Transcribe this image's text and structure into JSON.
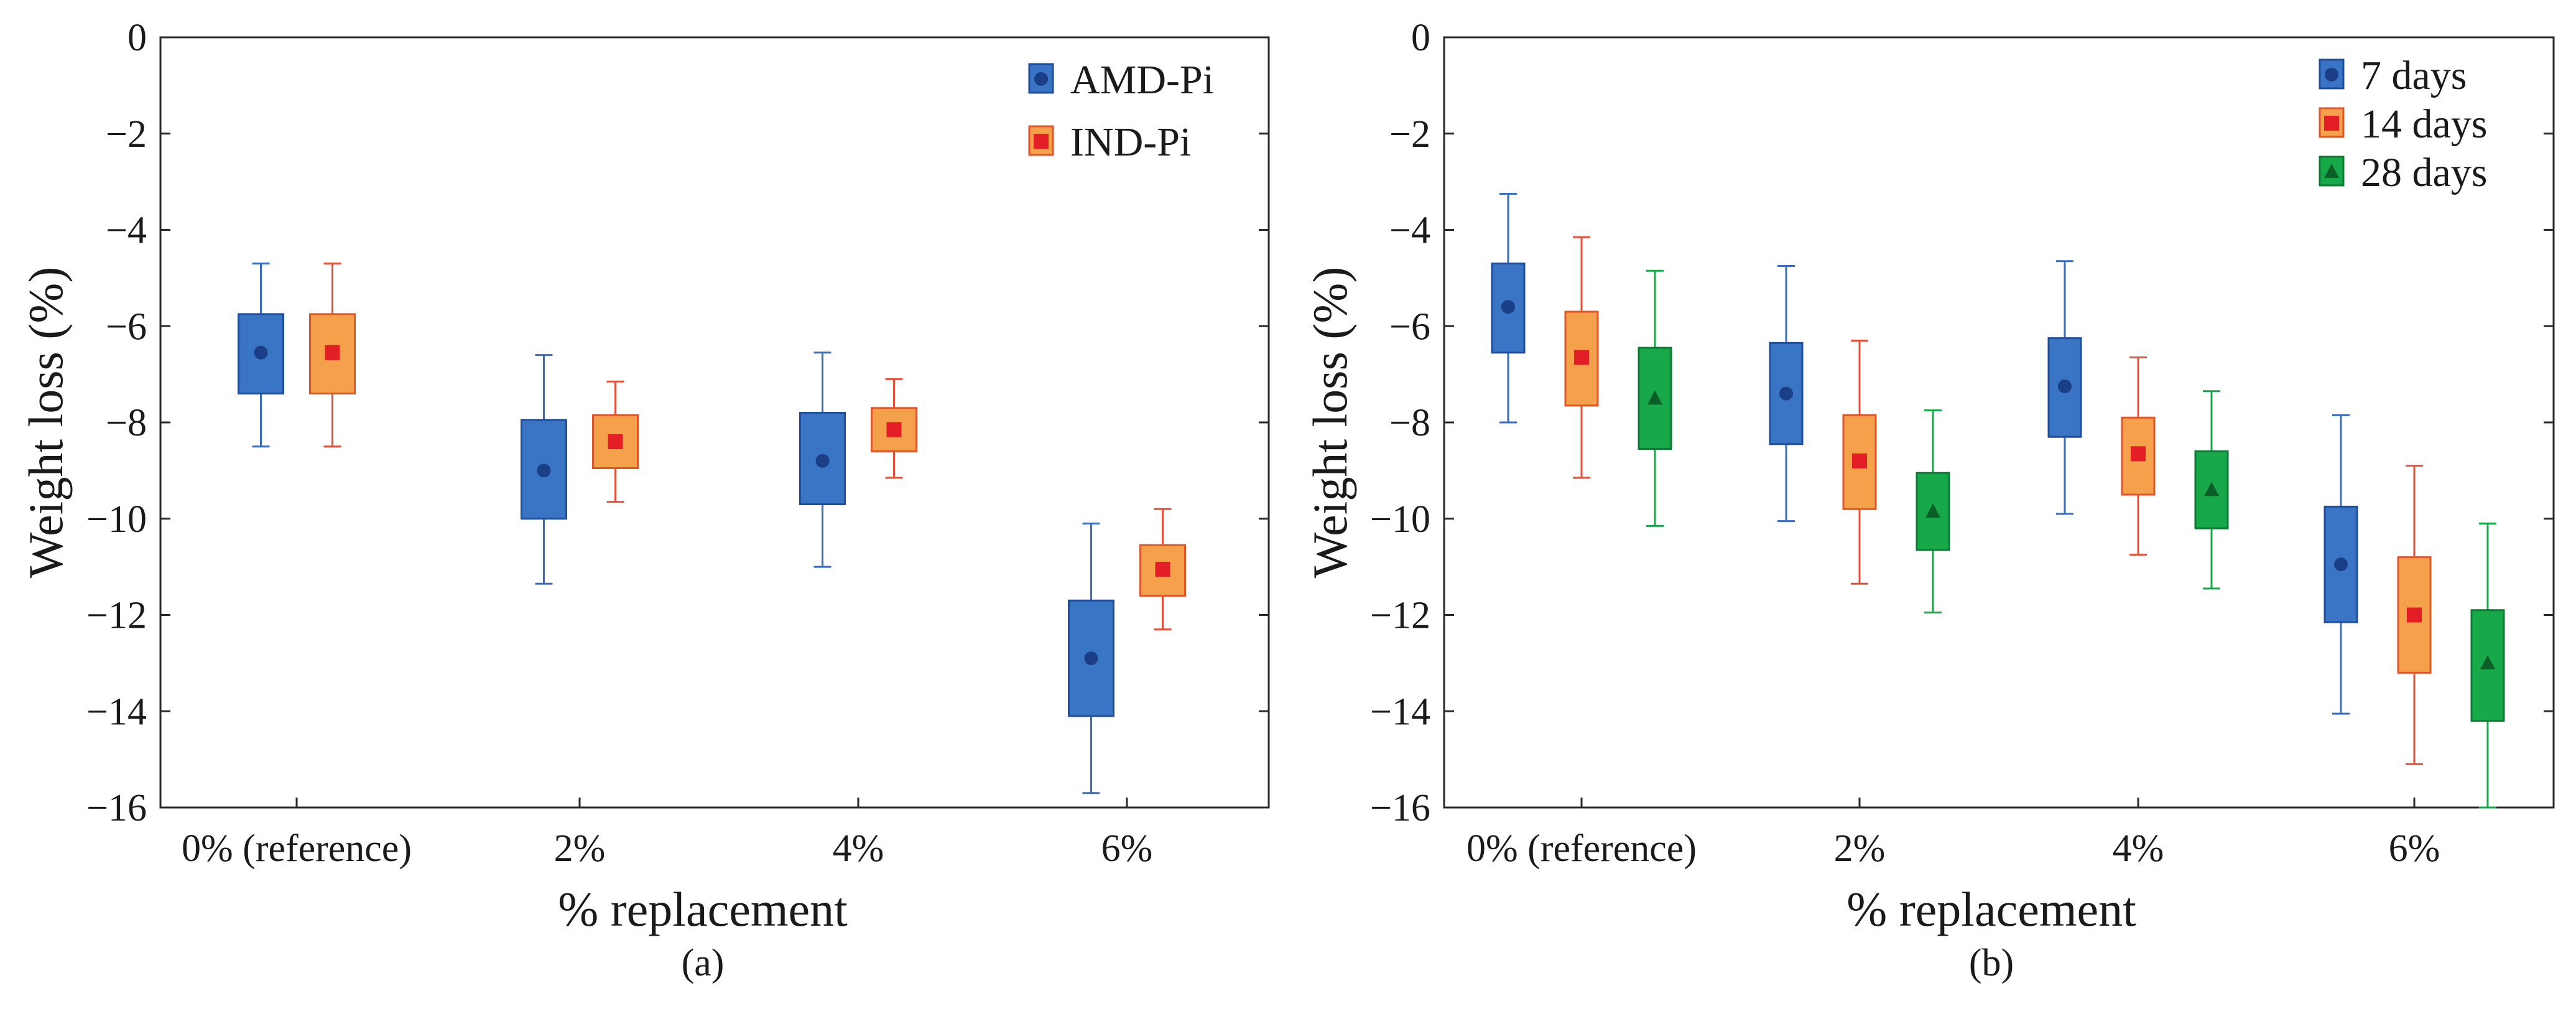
{
  "colors": {
    "blue_fill": "#3a74c4",
    "blue_edge": "#1f4e9a",
    "blue_marker": "#1a3f86",
    "orange_fill": "#f5a04a",
    "orange_edge": "#e0562b",
    "red_marker": "#e31e24",
    "green_fill": "#17a84a",
    "green_edge": "#0c7a33",
    "green_marker": "#0a5e26",
    "whisker_blue": "#3a6cc0",
    "whisker_red": "#e4503a",
    "whisker_green": "#17a84a"
  },
  "chart_data": [
    {
      "type": "box",
      "panel_label": "(a)",
      "xlabel": "% replacement",
      "ylabel": "Weight loss (%)",
      "ylim": [
        -16,
        0
      ],
      "yticks": [
        "0",
        "−2",
        "−4",
        "−6",
        "−8",
        "−10",
        "−12",
        "−14",
        "−16"
      ],
      "categories": [
        "0% (reference)",
        "2%",
        "4%",
        "6%"
      ],
      "legend_position": "top-right",
      "series": [
        {
          "name": "AMD-Pi",
          "marker": "circle",
          "boxes": [
            {
              "min": -8.5,
              "q1": -7.4,
              "mean": -6.55,
              "q3": -5.75,
              "max": -4.7
            },
            {
              "min": -11.35,
              "q1": -10.0,
              "mean": -9.0,
              "q3": -7.95,
              "max": -6.6
            },
            {
              "min": -11.0,
              "q1": -9.7,
              "mean": -8.8,
              "q3": -7.8,
              "max": -6.55
            },
            {
              "min": -15.7,
              "q1": -14.1,
              "mean": -12.9,
              "q3": -11.7,
              "max": -10.1
            }
          ]
        },
        {
          "name": "IND-Pi",
          "marker": "square",
          "boxes": [
            {
              "min": -8.5,
              "q1": -7.4,
              "mean": -6.55,
              "q3": -5.75,
              "max": -4.7
            },
            {
              "min": -9.65,
              "q1": -8.95,
              "mean": -8.4,
              "q3": -7.85,
              "max": -7.15
            },
            {
              "min": -9.15,
              "q1": -8.6,
              "mean": -8.15,
              "q3": -7.7,
              "max": -7.1
            },
            {
              "min": -12.3,
              "q1": -11.6,
              "mean": -11.05,
              "q3": -10.55,
              "max": -9.8
            }
          ]
        }
      ]
    },
    {
      "type": "box",
      "panel_label": "(b)",
      "xlabel": "% replacement",
      "ylabel": "Weight loss (%)",
      "ylim": [
        -16,
        0
      ],
      "yticks": [
        "0",
        "−2",
        "−4",
        "−6",
        "−8",
        "−10",
        "−12",
        "−14",
        "−16"
      ],
      "categories": [
        "0% (reference)",
        "2%",
        "4%",
        "6%"
      ],
      "legend_position": "top-right",
      "series": [
        {
          "name": "7 days",
          "marker": "circle",
          "boxes": [
            {
              "min": -8.0,
              "q1": -6.55,
              "mean": -5.6,
              "q3": -4.7,
              "max": -3.25
            },
            {
              "min": -10.05,
              "q1": -8.45,
              "mean": -7.4,
              "q3": -6.35,
              "max": -4.75
            },
            {
              "min": -9.9,
              "q1": -8.3,
              "mean": -7.25,
              "q3": -6.25,
              "max": -4.65
            },
            {
              "min": -14.05,
              "q1": -12.15,
              "mean": -10.95,
              "q3": -9.75,
              "max": -7.85
            }
          ]
        },
        {
          "name": "14 days",
          "marker": "square",
          "boxes": [
            {
              "min": -9.15,
              "q1": -7.65,
              "mean": -6.65,
              "q3": -5.7,
              "max": -4.15
            },
            {
              "min": -11.35,
              "q1": -9.8,
              "mean": -8.8,
              "q3": -7.85,
              "max": -6.3
            },
            {
              "min": -10.75,
              "q1": -9.5,
              "mean": -8.65,
              "q3": -7.9,
              "max": -6.65
            },
            {
              "min": -15.1,
              "q1": -13.2,
              "mean": -12.0,
              "q3": -10.8,
              "max": -8.9
            }
          ]
        },
        {
          "name": "28 days",
          "marker": "triangle",
          "boxes": [
            {
              "min": -10.15,
              "q1": -8.55,
              "mean": -7.5,
              "q3": -6.45,
              "max": -4.85
            },
            {
              "min": -11.95,
              "q1": -10.65,
              "mean": -9.85,
              "q3": -9.05,
              "max": -7.75
            },
            {
              "min": -11.45,
              "q1": -10.2,
              "mean": -9.4,
              "q3": -8.6,
              "max": -7.35
            },
            {
              "min": -16.0,
              "q1": -14.2,
              "mean": -13.0,
              "q3": -11.9,
              "max": -10.1
            }
          ]
        }
      ]
    }
  ]
}
